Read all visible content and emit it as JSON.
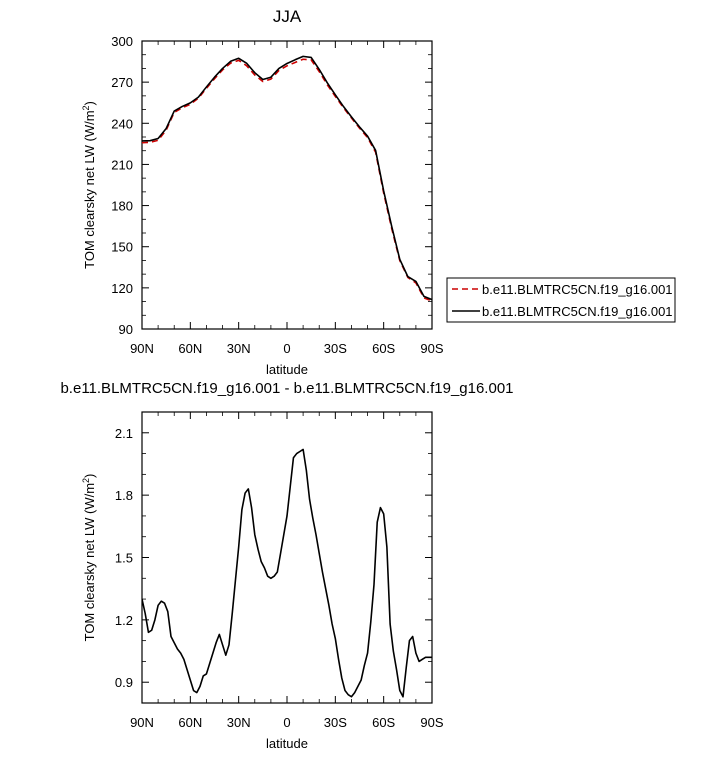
{
  "chart_data": [
    {
      "type": "line",
      "title": "JJA",
      "xlabel": "latitude",
      "ylabel": "TOM clearsky net LW (W/m",
      "ylabel_sup": "2",
      "ylabel_close": ")",
      "xlim": [
        90,
        -90
      ],
      "ylim": [
        90,
        300
      ],
      "xticks": [
        {
          "value": 90,
          "label": "90N"
        },
        {
          "value": 60,
          "label": "60N"
        },
        {
          "value": 30,
          "label": "30N"
        },
        {
          "value": 0,
          "label": "0"
        },
        {
          "value": -30,
          "label": "30S"
        },
        {
          "value": -60,
          "label": "60S"
        },
        {
          "value": -90,
          "label": "90S"
        }
      ],
      "yticks": [
        90,
        120,
        150,
        180,
        210,
        240,
        270,
        300
      ],
      "legend_position": "right",
      "series": [
        {
          "name": "b.e11.BLMTRC5CN.f19_g16.001",
          "color": "#cc0000",
          "dash": "dashed",
          "x": [
            90,
            85,
            80,
            75,
            70,
            65,
            60,
            55,
            50,
            45,
            40,
            35,
            30,
            25,
            20,
            15,
            10,
            5,
            0,
            -5,
            -10,
            -15,
            -20,
            -25,
            -30,
            -35,
            -40,
            -45,
            -50,
            -55,
            -60,
            -65,
            -70,
            -75,
            -80,
            -85,
            -90
          ],
          "values": [
            225.8,
            226.1,
            227.6,
            235,
            247.9,
            251.3,
            253.9,
            258.3,
            265.5,
            272.5,
            278.9,
            283.9,
            285.9,
            281.9,
            275.2,
            270.5,
            272.2,
            278.5,
            281.9,
            284.3,
            286.7,
            286.2,
            277.7,
            268.1,
            259.6,
            251.4,
            243.9,
            236.5,
            229.6,
            218.9,
            189.1,
            163.2,
            139.9,
            127.6,
            123.6,
            112.7,
            110.4
          ]
        },
        {
          "name": "b.e11.BLMTRC5CN.f19_g16.001",
          "color": "#000000",
          "dash": "solid",
          "x": [
            90,
            85,
            80,
            75,
            70,
            65,
            60,
            55,
            50,
            45,
            40,
            35,
            30,
            25,
            20,
            15,
            10,
            5,
            0,
            -5,
            -10,
            -15,
            -20,
            -25,
            -30,
            -35,
            -40,
            -45,
            -50,
            -55,
            -60,
            -65,
            -70,
            -75,
            -80,
            -85,
            -90
          ],
          "values": [
            227.1,
            227.3,
            228.9,
            236.2,
            248.9,
            252.3,
            254.9,
            259.1,
            266.5,
            273.6,
            280.0,
            285.2,
            287.4,
            283.7,
            276.9,
            271.9,
            273.6,
            280.0,
            283.6,
            286.3,
            288.8,
            288.0,
            279.3,
            269.5,
            260.8,
            252.3,
            244.7,
            237.4,
            230.6,
            220.2,
            190.7,
            164.8,
            140.8,
            128.2,
            124.7,
            113.8,
            111.4
          ]
        }
      ]
    },
    {
      "type": "line",
      "title": "b.e11.BLMTRC5CN.f19_g16.001 - b.e11.BLMTRC5CN.f19_g16.001",
      "xlabel": "latitude",
      "ylabel": "TOM clearsky net LW (W/m",
      "ylabel_sup": "2",
      "ylabel_close": ")",
      "xlim": [
        90,
        -90
      ],
      "ylim": [
        0.8,
        2.2
      ],
      "xticks": [
        {
          "value": 90,
          "label": "90N"
        },
        {
          "value": 60,
          "label": "60N"
        },
        {
          "value": 30,
          "label": "30N"
        },
        {
          "value": 0,
          "label": "0"
        },
        {
          "value": -30,
          "label": "30S"
        },
        {
          "value": -60,
          "label": "60S"
        },
        {
          "value": -90,
          "label": "90S"
        }
      ],
      "yticks": [
        0.9,
        1.2,
        1.5,
        1.8,
        2.1
      ],
      "ytick_labels": [
        "0.9",
        "1.2",
        "1.5",
        "1.8",
        "2.1"
      ],
      "series": [
        {
          "color": "#000000",
          "dash": "solid",
          "x": [
            90,
            88,
            86,
            84,
            82,
            80,
            78,
            76,
            74,
            72,
            70,
            68,
            66,
            64,
            62,
            60,
            58,
            56,
            54,
            52,
            50,
            48,
            46,
            44,
            42,
            40,
            38,
            36,
            34,
            32,
            30,
            28,
            26,
            24,
            22,
            20,
            18,
            16,
            14,
            12,
            10,
            8,
            6,
            4,
            2,
            0,
            -2,
            -4,
            -6,
            -8,
            -10,
            -12,
            -14,
            -16,
            -18,
            -20,
            -22,
            -24,
            -26,
            -28,
            -30,
            -32,
            -34,
            -36,
            -38,
            -40,
            -42,
            -44,
            -46,
            -48,
            -50,
            -52,
            -54,
            -56,
            -58,
            -60,
            -62,
            -64,
            -66,
            -68,
            -70,
            -72,
            -74,
            -76,
            -78,
            -80,
            -82,
            -84,
            -86,
            -88,
            -90
          ],
          "values": [
            1.3,
            1.23,
            1.14,
            1.15,
            1.2,
            1.27,
            1.29,
            1.28,
            1.24,
            1.12,
            1.09,
            1.06,
            1.04,
            1.01,
            0.96,
            0.91,
            0.86,
            0.85,
            0.88,
            0.93,
            0.94,
            0.99,
            1.04,
            1.09,
            1.13,
            1.08,
            1.03,
            1.08,
            1.23,
            1.39,
            1.55,
            1.73,
            1.81,
            1.83,
            1.74,
            1.61,
            1.54,
            1.48,
            1.45,
            1.41,
            1.4,
            1.41,
            1.43,
            1.52,
            1.61,
            1.7,
            1.84,
            1.98,
            2.0,
            2.01,
            2.02,
            1.92,
            1.78,
            1.69,
            1.61,
            1.52,
            1.43,
            1.35,
            1.27,
            1.18,
            1.11,
            1.01,
            0.92,
            0.86,
            0.84,
            0.83,
            0.85,
            0.88,
            0.91,
            0.98,
            1.04,
            1.19,
            1.37,
            1.67,
            1.74,
            1.71,
            1.55,
            1.18,
            1.05,
            0.96,
            0.86,
            0.83,
            0.97,
            1.1,
            1.12,
            1.04,
            1.0,
            1.01,
            1.02,
            1.02,
            1.02
          ]
        }
      ]
    }
  ]
}
